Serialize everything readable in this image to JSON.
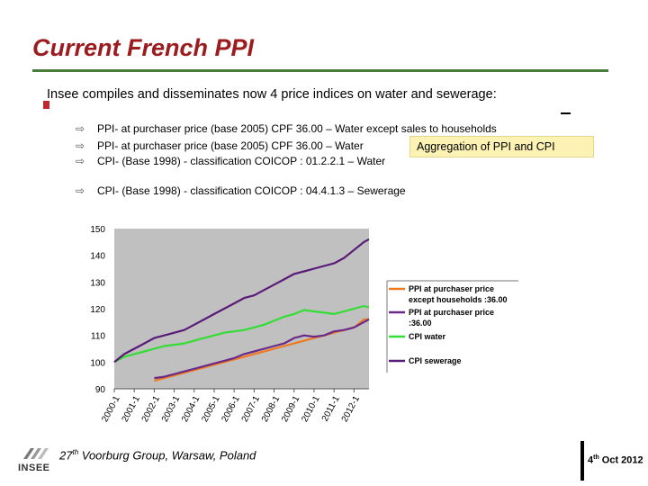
{
  "title": "Current French PPI",
  "main_bullet": "Insee compiles and disseminates now 4 price indices on water and sewerage:",
  "sub_items": [
    "PPI- at purchaser price (base 2005) CPF 36.00 – Water except sales to households",
    "PPI- at purchaser price (base 2005) CPF 36.00 – Water",
    "CPI- (Base 1998) - classification COICOP : 01.2.2.1 – Water",
    "CPI- (Base 1998) - classification COICOP : 04.4.1.3 – Sewerage"
  ],
  "callout": "Aggregation of PPI and CPI",
  "footer": {
    "left_prefix": "27",
    "left_sup": "th",
    "left_suffix": " Voorburg Group, Warsaw, Poland",
    "right_prefix": "4",
    "right_sup": "th",
    "right_suffix": " Oct 2012",
    "logo_text": "INSEE"
  },
  "colors": {
    "title": "#9b1b1f",
    "plot_bg": "#c0c0c0",
    "ppi_except": "#f07a1e",
    "ppi": "#6a2a8a",
    "cpi_water": "#33dd33",
    "cpi_sewerage": "#5a1a78"
  },
  "chart_data": {
    "type": "line",
    "title": "",
    "xlabel": "",
    "ylabel": "",
    "ylim": [
      90,
      150
    ],
    "yticks": [
      90,
      100,
      110,
      120,
      130,
      140,
      150
    ],
    "categories": [
      "2000-1",
      "2001-1",
      "2002-1",
      "2003-1",
      "2004-1",
      "2005-1",
      "2006-1",
      "2007-1",
      "2008-1",
      "2009-1",
      "2010-1",
      "2011-1",
      "2012-1"
    ],
    "x_start": 2000.0,
    "x_end": 2012.75,
    "legend": "right",
    "series": [
      {
        "name": "PPI at purchaser price except households :36.00",
        "color": "#f07a1e",
        "x": [
          2002.0,
          2002.5,
          2003.0,
          2003.5,
          2004.0,
          2004.5,
          2005.0,
          2005.5,
          2006.0,
          2006.5,
          2007.0,
          2007.5,
          2008.0,
          2008.5,
          2009.0,
          2009.5,
          2010.0,
          2010.5,
          2011.0,
          2011.5,
          2012.0,
          2012.5,
          2012.75
        ],
        "values": [
          93,
          94,
          95,
          96,
          97,
          98,
          99,
          100,
          101,
          102,
          103,
          104,
          105,
          106,
          107,
          108,
          109,
          110,
          111,
          112,
          113,
          116,
          116
        ]
      },
      {
        "name": "PPI at purchaser price :36.00",
        "color": "#6a2a8a",
        "x": [
          2002.0,
          2002.5,
          2003.0,
          2003.5,
          2004.0,
          2004.5,
          2005.0,
          2005.5,
          2006.0,
          2006.5,
          2007.0,
          2007.5,
          2008.0,
          2008.5,
          2009.0,
          2009.5,
          2010.0,
          2010.5,
          2011.0,
          2011.5,
          2012.0,
          2012.5,
          2012.75
        ],
        "values": [
          94,
          94.5,
          95.5,
          96.5,
          97.5,
          98.5,
          99.5,
          100.5,
          101.5,
          103,
          104,
          105,
          106,
          107,
          109,
          110,
          109.5,
          110,
          111.5,
          112,
          113,
          115,
          116
        ]
      },
      {
        "name": "CPI water",
        "color": "#33dd33",
        "x": [
          2000.0,
          2000.5,
          2001.0,
          2001.5,
          2002.0,
          2002.5,
          2003.0,
          2003.5,
          2004.0,
          2004.5,
          2005.0,
          2005.5,
          2006.0,
          2006.5,
          2007.0,
          2007.5,
          2008.0,
          2008.5,
          2009.0,
          2009.5,
          2010.0,
          2010.5,
          2011.0,
          2011.5,
          2012.0,
          2012.5,
          2012.75
        ],
        "values": [
          100,
          102,
          103,
          104,
          105,
          106,
          106.5,
          107,
          108,
          109,
          110,
          111,
          111.5,
          112,
          113,
          114,
          115.5,
          117,
          118,
          119.5,
          119,
          118.5,
          118,
          119,
          120,
          121,
          120.5
        ]
      },
      {
        "name": "CPI sewerage",
        "color": "#5a1a78",
        "x": [
          2000.0,
          2000.5,
          2001.0,
          2001.5,
          2002.0,
          2002.5,
          2003.0,
          2003.5,
          2004.0,
          2004.5,
          2005.0,
          2005.5,
          2006.0,
          2006.5,
          2007.0,
          2007.5,
          2008.0,
          2008.5,
          2009.0,
          2009.5,
          2010.0,
          2010.5,
          2011.0,
          2011.5,
          2012.0,
          2012.5,
          2012.75
        ],
        "values": [
          100,
          103,
          105,
          107,
          109,
          110,
          111,
          112,
          114,
          116,
          118,
          120,
          122,
          124,
          125,
          127,
          129,
          131,
          133,
          134,
          135,
          136,
          137,
          139,
          142,
          145,
          146
        ]
      }
    ]
  }
}
